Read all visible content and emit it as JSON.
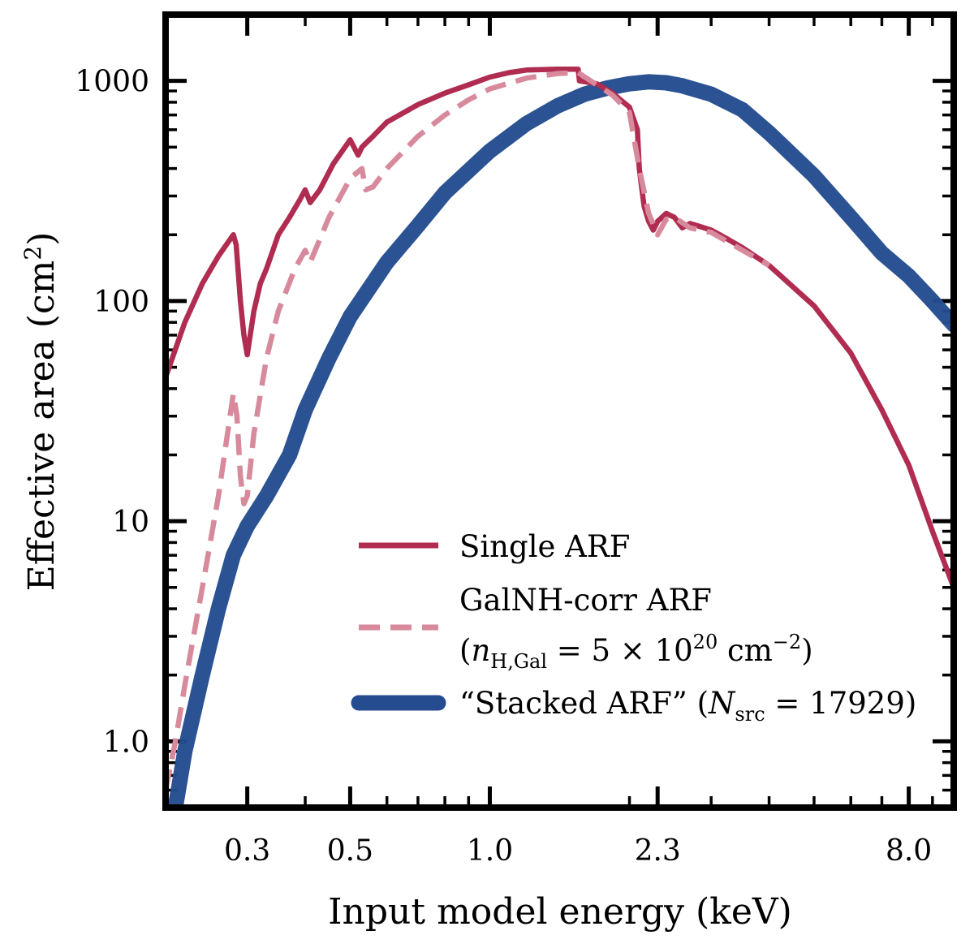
{
  "chart_data": {
    "type": "line",
    "xscale": "log",
    "yscale": "log",
    "xlabel": "Input model energy (keV)",
    "ylabel": "Effective area (cm",
    "ylabel_sup": "2",
    "ylabel_close": ")",
    "xlim": [
      0.2,
      10.0
    ],
    "ylim": [
      0.5,
      2000
    ],
    "xticks": [
      {
        "value": 0.3,
        "label": "0.3"
      },
      {
        "value": 0.5,
        "label": "0.5"
      },
      {
        "value": 1.0,
        "label": "1.0"
      },
      {
        "value": 2.3,
        "label": "2.3"
      },
      {
        "value": 8.0,
        "label": "8.0"
      }
    ],
    "yticks": [
      {
        "value": 1,
        "label": "1.0"
      },
      {
        "value": 10,
        "label": "10"
      },
      {
        "value": 100,
        "label": "100"
      },
      {
        "value": 1000,
        "label": "1000"
      }
    ],
    "legend_position": "lower-right",
    "series": [
      {
        "name": "Single ARF",
        "style": "solid",
        "color": "#B02C50",
        "x": [
          0.2,
          0.22,
          0.24,
          0.26,
          0.28,
          0.284,
          0.29,
          0.295,
          0.3,
          0.31,
          0.32,
          0.33,
          0.35,
          0.37,
          0.39,
          0.4,
          0.41,
          0.43,
          0.46,
          0.5,
          0.52,
          0.53,
          0.54,
          0.56,
          0.6,
          0.7,
          0.8,
          0.9,
          1.0,
          1.1,
          1.2,
          1.4,
          1.55,
          1.56,
          1.7,
          1.84,
          1.9,
          2.0,
          2.08,
          2.1,
          2.15,
          2.2,
          2.25,
          2.3,
          2.4,
          2.5,
          2.6,
          2.7,
          2.8,
          3.0,
          3.2,
          3.5,
          4.0,
          5.0,
          6.0,
          7.0,
          8.0,
          9.0,
          10.0
        ],
        "values": [
          45,
          80,
          120,
          160,
          200,
          180,
          100,
          70,
          57,
          90,
          120,
          140,
          200,
          240,
          290,
          320,
          280,
          320,
          420,
          540,
          460,
          500,
          520,
          560,
          650,
          780,
          880,
          960,
          1040,
          1090,
          1120,
          1130,
          1130,
          1000,
          970,
          880,
          830,
          760,
          600,
          400,
          270,
          230,
          210,
          230,
          250,
          240,
          215,
          225,
          220,
          210,
          195,
          175,
          145,
          95,
          58,
          32,
          18,
          9,
          5
        ]
      },
      {
        "name": "GalNH-corr ARF",
        "style": "dashed",
        "color": "#D88A9D",
        "x": [
          0.2,
          0.21,
          0.22,
          0.24,
          0.26,
          0.28,
          0.285,
          0.29,
          0.295,
          0.3,
          0.31,
          0.33,
          0.35,
          0.38,
          0.4,
          0.41,
          0.45,
          0.5,
          0.53,
          0.54,
          0.56,
          0.6,
          0.7,
          0.8,
          0.9,
          1.0,
          1.2,
          1.4,
          1.55,
          1.7,
          1.84,
          2.0,
          2.1,
          2.2,
          2.3,
          2.4,
          2.5,
          2.7,
          3.0,
          4.0
        ],
        "values": [
          0.6,
          1.0,
          1.8,
          5,
          13,
          38,
          30,
          16,
          12,
          13,
          25,
          55,
          90,
          140,
          170,
          150,
          240,
          360,
          400,
          320,
          330,
          400,
          560,
          700,
          820,
          920,
          1030,
          1080,
          1090,
          960,
          860,
          720,
          400,
          250,
          200,
          235,
          240,
          215,
          205,
          145
        ]
      },
      {
        "name": "“Stacked ARF” (",
        "style": "thick",
        "color": "#244C8E",
        "x": [
          0.21,
          0.22,
          0.24,
          0.26,
          0.28,
          0.3,
          0.33,
          0.37,
          0.4,
          0.45,
          0.5,
          0.6,
          0.7,
          0.8,
          1.0,
          1.2,
          1.4,
          1.6,
          1.8,
          2.0,
          2.2,
          2.4,
          2.6,
          3.0,
          3.5,
          4.0,
          5.0,
          6.0,
          7.0,
          8.0,
          9.0,
          10.0
        ],
        "values": [
          0.5,
          0.9,
          2.0,
          4.0,
          7.0,
          9.5,
          13,
          20,
          32,
          55,
          85,
          150,
          220,
          310,
          480,
          640,
          770,
          870,
          930,
          970,
          990,
          980,
          950,
          870,
          740,
          580,
          370,
          240,
          165,
          130,
          100,
          78
        ]
      }
    ],
    "legend": [
      {
        "label": "Single ARF"
      },
      {
        "label": "GalNH-corr ARF",
        "label2_pre": "(",
        "label2_var": "n",
        "label2_sub": "H,Gal",
        "label2_mid": " = 5 × 10",
        "label2_sup": "20",
        "label2_unit": " cm",
        "label2_unit_sup": "−2",
        "label2_close": ")"
      },
      {
        "label": "“Stacked ARF” (",
        "var": "N",
        "sub": "src",
        "tail": " = 17929)"
      }
    ]
  }
}
